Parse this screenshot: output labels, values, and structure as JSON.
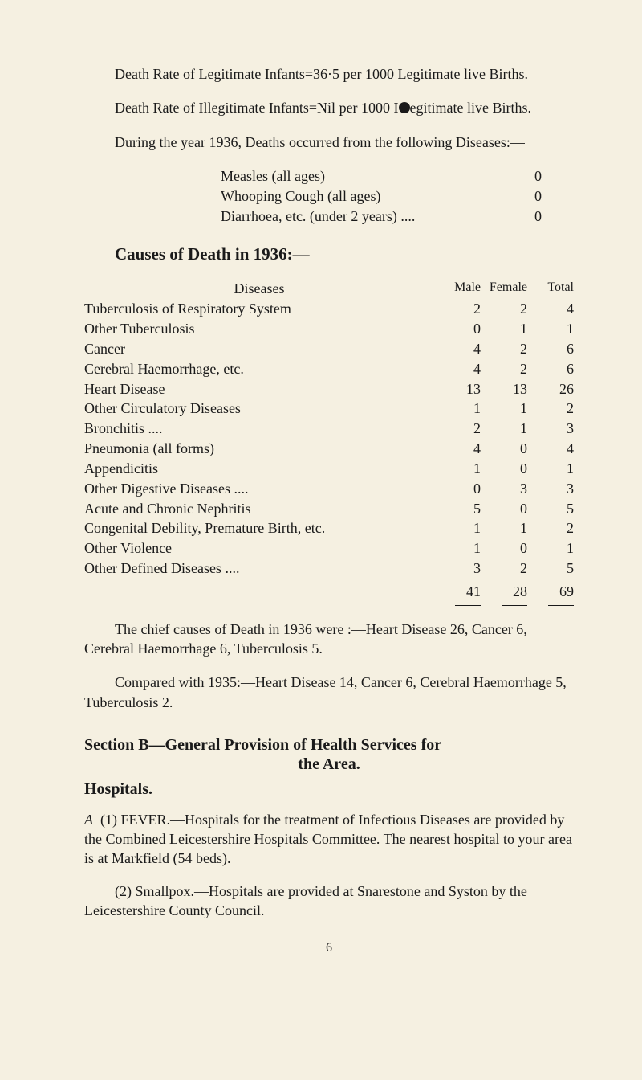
{
  "paragraphs": {
    "p1": "Death Rate of Legitimate Infants=36·5 per 1000 Legitimate live Births.",
    "p2a": "Death Rate of Illegitimate Infants=Nil per 1000 I",
    "p2b": "egitimate live Births.",
    "p3": "During the year 1936, Deaths occurred from the following Diseases:—"
  },
  "disease_list": [
    {
      "label": "Measles (all ages)",
      "dots": "....    ....",
      "val": "0"
    },
    {
      "label": "Whooping Cough (all ages)",
      "dots": "....",
      "val": "0"
    },
    {
      "label": "Diarrhoea, etc. (under 2 years) ....",
      "dots": "",
      "val": "0"
    }
  ],
  "causes_heading": "Causes of Death in 1936:—",
  "table": {
    "header_label": "Diseases",
    "header_m": "Male",
    "header_f": "Female",
    "header_t": "Total",
    "rows": [
      {
        "label": "Tuberculosis of Respiratory System",
        "m": "2",
        "f": "2",
        "t": "4",
        "sub": true
      },
      {
        "label": "Other Tuberculosis",
        "m": "0",
        "f": "1",
        "t": "1",
        "sub": true
      },
      {
        "label": "Cancer",
        "m": "4",
        "f": "2",
        "t": "6",
        "sub": true
      },
      {
        "label": "Cerebral Haemorrhage, etc.",
        "m": "4",
        "f": "2",
        "t": "6",
        "sub": true
      },
      {
        "label": "Heart Disease",
        "m": "13",
        "f": "13",
        "t": "26",
        "sub": true
      },
      {
        "label": "Other Circulatory Diseases",
        "m": "1",
        "f": "1",
        "t": "2",
        "sub": true
      },
      {
        "label": "Bronchitis ....",
        "m": "2",
        "f": "1",
        "t": "3",
        "sub": true
      },
      {
        "label": "Pneumonia (all forms)",
        "m": "4",
        "f": "0",
        "t": "4",
        "sub": true
      },
      {
        "label": "Appendicitis",
        "m": "1",
        "f": "0",
        "t": "1",
        "sub": true
      },
      {
        "label": "Other Digestive Diseases ....",
        "m": "0",
        "f": "3",
        "t": "3",
        "sub": true
      },
      {
        "label": "Acute and Chronic Nephritis",
        "m": "5",
        "f": "0",
        "t": "5",
        "sub": true
      },
      {
        "label": "Congenital Debility, Premature Birth, etc.",
        "m": "1",
        "f": "1",
        "t": "2",
        "sub": true
      },
      {
        "label": "Other Violence",
        "m": "1",
        "f": "0",
        "t": "1",
        "sub": true
      },
      {
        "label": "Other Defined Diseases ....",
        "m": "3",
        "f": "2",
        "t": "5",
        "sub": true
      }
    ],
    "total": {
      "m": "41",
      "f": "28",
      "t": "69"
    }
  },
  "after_table": {
    "p1": "The chief causes of Death in 1936 were :—Heart Disease 26, Cancer 6, Cerebral Haemorrhage 6, Tuberculosis 5.",
    "p2": "Compared with 1935:—Heart Disease 14, Cancer 6, Cerebral Haemorrhage 5, Tuberculosis 2."
  },
  "section_b": {
    "line1": "Section B—General Provision of Health Services for",
    "line2": "the Area.",
    "hospitals": "Hospitals.",
    "a1": "A  (1)  FEVER.—Hospitals for the treatment of Infectious Diseases are provided by the Combined Leicestershire Hospitals Committee.    The nearest hospital to your area is at Markfield (54 beds).",
    "a2": "(2)  Smallpox.—Hospitals are provided at Snarestone and Syston by the Leicestershire County Council."
  },
  "page_number": "6",
  "colors": {
    "background": "#f5f0e1",
    "text": "#1a1a1a"
  }
}
